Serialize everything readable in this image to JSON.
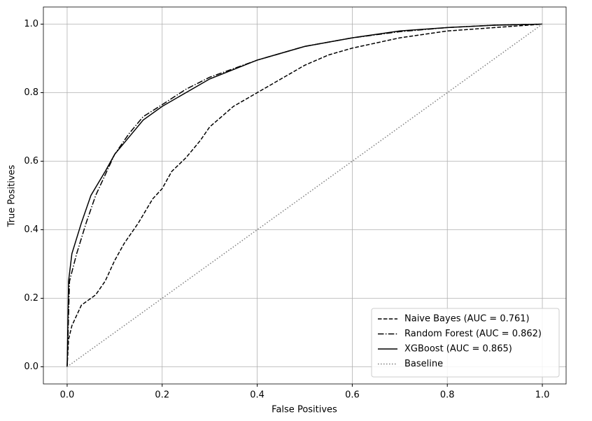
{
  "chart_data": {
    "type": "line",
    "xlabel": "False Positives",
    "ylabel": "True Positives",
    "xlim": [
      -0.05,
      1.05
    ],
    "ylim": [
      -0.05,
      1.05
    ],
    "xticks": [
      {
        "value": 0,
        "label": "0.0"
      },
      0.2,
      0.4,
      0.6,
      0.8,
      {
        "value": 1,
        "label": "1.0"
      }
    ],
    "yticks": [
      {
        "value": 0,
        "label": "0.0"
      },
      0.2,
      0.4,
      0.6,
      0.8,
      {
        "value": 1,
        "label": "1.0"
      }
    ],
    "grid": true,
    "legend": "lower right",
    "series": [
      {
        "name": "Naive Bayes (AUC = 0.761)",
        "color": "#000000",
        "linestyle": "dashed",
        "x": [
          0,
          0.003,
          0.01,
          0.03,
          0.06,
          0.08,
          0.1,
          0.12,
          0.15,
          0.18,
          0.2,
          0.22,
          0.25,
          0.28,
          0.3,
          0.35,
          0.4,
          0.45,
          0.5,
          0.55,
          0.6,
          0.7,
          0.8,
          0.9,
          1
        ],
        "values": [
          0,
          0.08,
          0.12,
          0.18,
          0.21,
          0.25,
          0.31,
          0.36,
          0.42,
          0.49,
          0.52,
          0.57,
          0.61,
          0.66,
          0.7,
          0.76,
          0.8,
          0.84,
          0.88,
          0.91,
          0.93,
          0.96,
          0.98,
          0.99,
          1
        ]
      },
      {
        "name": "Random Forest (AUC = 0.862)",
        "color": "#000000",
        "linestyle": "dashdot",
        "x": [
          0,
          0.005,
          0.02,
          0.04,
          0.06,
          0.08,
          0.1,
          0.13,
          0.16,
          0.2,
          0.25,
          0.3,
          0.4,
          0.5,
          0.6,
          0.7,
          0.8,
          0.9,
          1
        ],
        "values": [
          0,
          0.25,
          0.33,
          0.42,
          0.5,
          0.56,
          0.62,
          0.68,
          0.73,
          0.765,
          0.81,
          0.845,
          0.895,
          0.935,
          0.96,
          0.978,
          0.99,
          0.997,
          1
        ]
      },
      {
        "name": "XGBoost (AUC = 0.865)",
        "color": "#000000",
        "linestyle": "solid",
        "x": [
          0,
          0.003,
          0.01,
          0.03,
          0.05,
          0.08,
          0.1,
          0.13,
          0.16,
          0.2,
          0.25,
          0.3,
          0.4,
          0.5,
          0.6,
          0.7,
          0.8,
          0.9,
          1
        ],
        "values": [
          0,
          0.25,
          0.33,
          0.42,
          0.5,
          0.57,
          0.62,
          0.67,
          0.72,
          0.76,
          0.8,
          0.84,
          0.895,
          0.935,
          0.96,
          0.98,
          0.99,
          0.997,
          1
        ]
      },
      {
        "name": "Baseline",
        "color": "#808080",
        "linestyle": "dotted",
        "x": [
          0,
          1
        ],
        "values": [
          0,
          1
        ]
      }
    ]
  }
}
